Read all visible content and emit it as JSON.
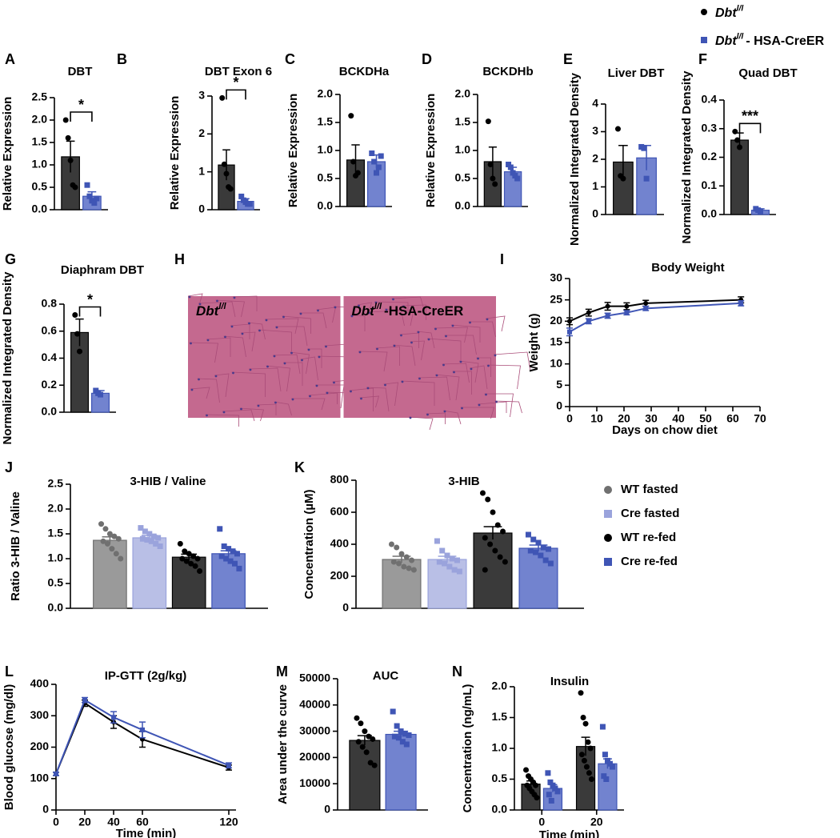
{
  "legend": {
    "items": [
      {
        "name": "Dbt",
        "sup": "l/l",
        "color": "#000000",
        "marker": "circle"
      },
      {
        "name": "Dbt",
        "sup": "l/l",
        "suffix": "- HSA-CreER",
        "color": "#3f55b5",
        "marker": "square"
      }
    ]
  },
  "chart_data": [
    {
      "type": "bar",
      "panel": "A",
      "title": "DBT",
      "ylabel": "Relative Expression",
      "significance": "*",
      "ylim": [
        0,
        2.5
      ],
      "yticks": [
        {
          "value": 0,
          "label": "0.0"
        },
        0.5,
        {
          "value": 1,
          "label": "1.0"
        },
        1.5,
        {
          "value": 2,
          "label": "2.0"
        },
        2.5
      ],
      "series": [
        {
          "color": "#3a3a3a",
          "point_color": "#000000",
          "marker": "circle",
          "values": [
            1.18
          ],
          "errors": [
            0.35
          ],
          "points": [
            [
              2.0,
              1.6,
              1.1,
              0.55,
              0.5
            ]
          ]
        },
        {
          "color": "#7283cf",
          "point_color": "#3f55b5",
          "marker": "square",
          "values": [
            0.3
          ],
          "errors": [
            0.1
          ],
          "points": [
            [
              0.55,
              0.3,
              0.2,
              0.15,
              0.25
            ]
          ]
        }
      ]
    },
    {
      "type": "bar",
      "panel": "B",
      "title": "DBT Exon 6",
      "ylabel": "Relative Expression",
      "significance": "*",
      "ylim": [
        0,
        3
      ],
      "yticks": [
        0,
        1,
        2,
        3
      ],
      "series": [
        {
          "color": "#3a3a3a",
          "point_color": "#000000",
          "marker": "circle",
          "values": [
            1.18
          ],
          "errors": [
            0.4
          ],
          "points": [
            [
              2.95,
              1.2,
              0.95,
              0.6,
              0.55
            ]
          ]
        },
        {
          "color": "#7283cf",
          "point_color": "#3f55b5",
          "marker": "square",
          "values": [
            0.22
          ],
          "errors": [
            0.07
          ],
          "points": [
            [
              0.35,
              0.25,
              0.2,
              0.15,
              0.15
            ]
          ]
        }
      ]
    },
    {
      "type": "bar",
      "panel": "C",
      "title": "BCKDHa",
      "ylabel": "Relative Expression",
      "ylim": [
        0,
        2
      ],
      "yticks": [
        {
          "value": 0,
          "label": "0.0"
        },
        0.5,
        {
          "value": 1,
          "label": "1.0"
        },
        1.5,
        {
          "value": 2,
          "label": "2.0"
        }
      ],
      "series": [
        {
          "color": "#3a3a3a",
          "point_color": "#000000",
          "marker": "circle",
          "values": [
            0.83
          ],
          "errors": [
            0.27
          ],
          "points": [
            [
              1.62,
              0.8,
              0.55,
              0.6
            ]
          ]
        },
        {
          "color": "#7283cf",
          "point_color": "#3f55b5",
          "marker": "square",
          "values": [
            0.8
          ],
          "errors": [
            0.12
          ],
          "points": [
            [
              0.95,
              0.8,
              0.6,
              0.7,
              0.9
            ]
          ]
        }
      ]
    },
    {
      "type": "bar",
      "panel": "D",
      "title": "BCKDHb",
      "ylabel": "Relative Expression",
      "ylim": [
        0,
        2
      ],
      "yticks": [
        {
          "value": 0,
          "label": "0.0"
        },
        0.5,
        {
          "value": 1,
          "label": "1.0"
        },
        1.5,
        {
          "value": 2,
          "label": "2.0"
        }
      ],
      "series": [
        {
          "color": "#3a3a3a",
          "point_color": "#000000",
          "marker": "circle",
          "values": [
            0.8
          ],
          "errors": [
            0.26
          ],
          "points": [
            [
              1.52,
              0.75,
              0.5,
              0.4
            ]
          ]
        },
        {
          "color": "#7283cf",
          "point_color": "#3f55b5",
          "marker": "square",
          "values": [
            0.62
          ],
          "errors": [
            0.08
          ],
          "points": [
            [
              0.75,
              0.7,
              0.6,
              0.55,
              0.5
            ]
          ]
        }
      ]
    },
    {
      "type": "bar",
      "panel": "E",
      "title": "Liver DBT",
      "ylabel": "Normalized Integrated Density",
      "ylim": [
        0,
        4
      ],
      "yticks": [
        0,
        1,
        2,
        3,
        4
      ],
      "series": [
        {
          "color": "#3a3a3a",
          "point_color": "#000000",
          "marker": "circle",
          "values": [
            1.9
          ],
          "errors": [
            0.6
          ],
          "points": [
            [
              3.1,
              1.4,
              1.3
            ]
          ]
        },
        {
          "color": "#7283cf",
          "point_color": "#3f55b5",
          "marker": "square",
          "values": [
            2.05
          ],
          "errors": [
            0.45
          ],
          "points": [
            [
              2.45,
              2.4,
              1.3
            ]
          ]
        }
      ]
    },
    {
      "type": "bar",
      "panel": "F",
      "title": "Quad DBT",
      "ylabel": "Normalized Integrated Density",
      "significance": "***",
      "ylim": [
        0,
        0.4
      ],
      "yticks": [
        {
          "value": 0,
          "label": "0.0"
        },
        0.1,
        0.2,
        0.3,
        0.4
      ],
      "series": [
        {
          "color": "#3a3a3a",
          "point_color": "#000000",
          "marker": "circle",
          "values": [
            0.26
          ],
          "errors": [
            0.025
          ],
          "points": [
            [
              0.29,
              0.26,
              0.235
            ]
          ]
        },
        {
          "color": "#7283cf",
          "point_color": "#3f55b5",
          "marker": "square",
          "values": [
            0.015
          ],
          "errors": [
            0.005
          ],
          "points": [
            [
              0.02,
              0.015,
              0.01
            ]
          ]
        }
      ]
    },
    {
      "type": "bar",
      "panel": "G",
      "title": "Diaphram DBT",
      "ylabel": "Normalized Integrated Density",
      "significance": "*",
      "ylim": [
        0,
        0.8
      ],
      "yticks": [
        {
          "value": 0,
          "label": "0.0"
        },
        0.2,
        0.4,
        0.6,
        0.8
      ],
      "series": [
        {
          "color": "#3a3a3a",
          "point_color": "#000000",
          "marker": "circle",
          "values": [
            0.59
          ],
          "errors": [
            0.1
          ],
          "points": [
            [
              0.72,
              0.58,
              0.45
            ]
          ]
        },
        {
          "color": "#7283cf",
          "point_color": "#3f55b5",
          "marker": "square",
          "values": [
            0.14
          ],
          "errors": [
            0.02
          ],
          "points": [
            [
              0.16,
              0.14,
              0.13
            ]
          ]
        }
      ]
    },
    {
      "type": "image",
      "panel": "H",
      "labels": [
        {
          "name": "Dbt",
          "sup": "l/l"
        },
        {
          "name": "Dbt",
          "sup": "l/l",
          "suffix": "-HSA-CreER"
        }
      ]
    },
    {
      "type": "line",
      "panel": "I",
      "title": "Body Weight",
      "xlabel": "Days on chow diet",
      "ylabel": "Weight (g)",
      "xlim": [
        0,
        70
      ],
      "xticks": [
        0,
        10,
        20,
        30,
        40,
        50,
        60,
        70
      ],
      "ylim": [
        0,
        30
      ],
      "yticks": [
        0,
        5,
        10,
        15,
        20,
        25,
        30
      ],
      "x": [
        0,
        7,
        14,
        21,
        28,
        63
      ],
      "series": [
        {
          "color": "#000000",
          "marker": "circle",
          "values": [
            20,
            22,
            23.5,
            23.5,
            24.2,
            25
          ],
          "errors": [
            0.8,
            0.8,
            0.9,
            0.8,
            0.7,
            0.7
          ]
        },
        {
          "color": "#3f55b5",
          "marker": "square",
          "values": [
            17.5,
            20,
            21.3,
            22,
            23,
            24.2
          ],
          "errors": [
            0.9,
            0.6,
            0.6,
            0.5,
            0.5,
            0.6
          ]
        }
      ]
    },
    {
      "type": "bar",
      "panel": "J",
      "title": "3-HIB / Valine",
      "ylabel": "Ratio 3-HIB / Valine",
      "ylim": [
        0,
        2.5
      ],
      "yticks": [
        {
          "value": 0,
          "label": "0.0"
        },
        0.5,
        {
          "value": 1,
          "label": "1.0"
        },
        1.5,
        {
          "value": 2,
          "label": "2.0"
        },
        2.5
      ],
      "series": [
        {
          "color": "#9a9a9a",
          "point_color": "#707070",
          "marker": "circle",
          "values": [
            1.37
          ],
          "errors": [
            0.07
          ],
          "points": [
            [
              1.7,
              1.6,
              1.5,
              1.45,
              1.4,
              1.35,
              1.3,
              1.2,
              1.1,
              1.0
            ]
          ]
        },
        {
          "color": "#b9bfe6",
          "point_color": "#9aa3dc",
          "marker": "square",
          "values": [
            1.42
          ],
          "errors": [
            0.05
          ],
          "points": [
            [
              1.62,
              1.55,
              1.5,
              1.45,
              1.42,
              1.4,
              1.38,
              1.35,
              1.3,
              1.25
            ]
          ]
        },
        {
          "color": "#3a3a3a",
          "point_color": "#000000",
          "marker": "circle",
          "values": [
            1.03
          ],
          "errors": [
            0.06
          ],
          "points": [
            [
              1.3,
              1.15,
              1.1,
              1.05,
              1.0,
              1.0,
              0.95,
              0.9,
              0.85,
              0.75
            ]
          ]
        },
        {
          "color": "#7283cf",
          "point_color": "#3f55b5",
          "marker": "square",
          "values": [
            1.1
          ],
          "errors": [
            0.06
          ],
          "points": [
            [
              1.6,
              1.25,
              1.2,
              1.15,
              1.1,
              1.05,
              1.0,
              0.95,
              0.9,
              0.8
            ]
          ]
        }
      ]
    },
    {
      "type": "bar",
      "panel": "K",
      "title": "3-HIB",
      "ylabel": "Concentration (µM)",
      "ylim": [
        0,
        800
      ],
      "yticks": [
        0,
        200,
        400,
        600,
        800
      ],
      "series": [
        {
          "name": "WT fasted",
          "color": "#9a9a9a",
          "point_color": "#707070",
          "marker": "circle",
          "values": [
            305
          ],
          "errors": [
            20
          ],
          "points": [
            [
              400,
              380,
              340,
              320,
              300,
              290,
              280,
              260,
              250,
              240
            ]
          ]
        },
        {
          "name": "Cre fasted",
          "color": "#b9bfe6",
          "point_color": "#9aa3dc",
          "marker": "square",
          "values": [
            305
          ],
          "errors": [
            20
          ],
          "points": [
            [
              420,
              360,
              330,
              310,
              300,
              290,
              280,
              260,
              240,
              230
            ]
          ]
        },
        {
          "name": "WT re-fed",
          "color": "#3a3a3a",
          "point_color": "#000000",
          "marker": "circle",
          "values": [
            470
          ],
          "errors": [
            40
          ],
          "points": [
            [
              720,
              680,
              600,
              520,
              480,
              440,
              400,
              360,
              320,
              290,
              240
            ]
          ]
        },
        {
          "name": "Cre re-fed",
          "color": "#7283cf",
          "point_color": "#3f55b5",
          "marker": "square",
          "values": [
            375
          ],
          "errors": [
            20
          ],
          "points": [
            [
              460,
              430,
              410,
              380,
              370,
              360,
              350,
              330,
              300,
              280
            ]
          ]
        }
      ]
    },
    {
      "type": "line",
      "panel": "L",
      "title": "IP-GTT (2g/kg)",
      "xlabel": "Time (min)",
      "ylabel": "Blood glucose (mg/dl)",
      "xlim": [
        0,
        125
      ],
      "xticks": [
        0,
        20,
        40,
        60,
        120
      ],
      "ylim": [
        0,
        400
      ],
      "yticks": [
        0,
        100,
        200,
        300,
        400
      ],
      "x": [
        0,
        20,
        40,
        60,
        120
      ],
      "series": [
        {
          "color": "#000000",
          "marker": "circle",
          "values": [
            115,
            340,
            280,
            225,
            135
          ],
          "errors": [
            5,
            10,
            20,
            25,
            8
          ]
        },
        {
          "color": "#3f55b5",
          "marker": "square",
          "values": [
            115,
            350,
            295,
            255,
            142
          ],
          "errors": [
            5,
            8,
            18,
            25,
            8
          ]
        }
      ]
    },
    {
      "type": "bar",
      "panel": "M",
      "title": "AUC",
      "ylabel": "Area under the curve",
      "ylim": [
        0,
        50000
      ],
      "yticks": [
        0,
        10000,
        20000,
        30000,
        40000,
        50000
      ],
      "series": [
        {
          "color": "#3a3a3a",
          "point_color": "#000000",
          "marker": "circle",
          "values": [
            26500
          ],
          "errors": [
            1800
          ],
          "points": [
            [
              35000,
              33000,
              30000,
              28000,
              27000,
              26000,
              24000,
              22000,
              18000,
              17000
            ]
          ]
        },
        {
          "color": "#7283cf",
          "point_color": "#3f55b5",
          "marker": "square",
          "values": [
            28800
          ],
          "errors": [
            1200
          ],
          "points": [
            [
              37500,
              32000,
              30000,
              29000,
              28500,
              28000,
              27500,
              26000,
              25000
            ]
          ]
        }
      ]
    },
    {
      "type": "bar",
      "panel": "N",
      "title": "Insulin",
      "xlabel": "Time (min)",
      "ylabel": "Concentration (ng/mL)",
      "categories": [
        "0",
        "20"
      ],
      "ylim": [
        0,
        2
      ],
      "yticks": [
        {
          "value": 0,
          "label": "0.0"
        },
        0.5,
        {
          "value": 1,
          "label": "1.0"
        },
        1.5,
        {
          "value": 2,
          "label": "2.0"
        }
      ],
      "series": [
        {
          "color": "#3a3a3a",
          "point_color": "#000000",
          "marker": "circle",
          "values": [
            0.42,
            1.03
          ],
          "errors": [
            0.05,
            0.15
          ],
          "points": [
            [
              0.65,
              0.55,
              0.5,
              0.45,
              0.4,
              0.4,
              0.35,
              0.3,
              0.25,
              0.2
            ],
            [
              1.9,
              1.5,
              1.4,
              1.1,
              1.0,
              0.9,
              0.8,
              0.7,
              0.6,
              0.5
            ]
          ]
        },
        {
          "color": "#7283cf",
          "point_color": "#3f55b5",
          "marker": "square",
          "values": [
            0.35,
            0.75
          ],
          "errors": [
            0.06,
            0.08
          ],
          "points": [
            [
              0.6,
              0.45,
              0.4,
              0.35,
              0.3,
              0.25,
              0.15
            ],
            [
              1.35,
              0.9,
              0.8,
              0.75,
              0.7,
              0.55,
              0.5
            ]
          ]
        }
      ]
    }
  ]
}
